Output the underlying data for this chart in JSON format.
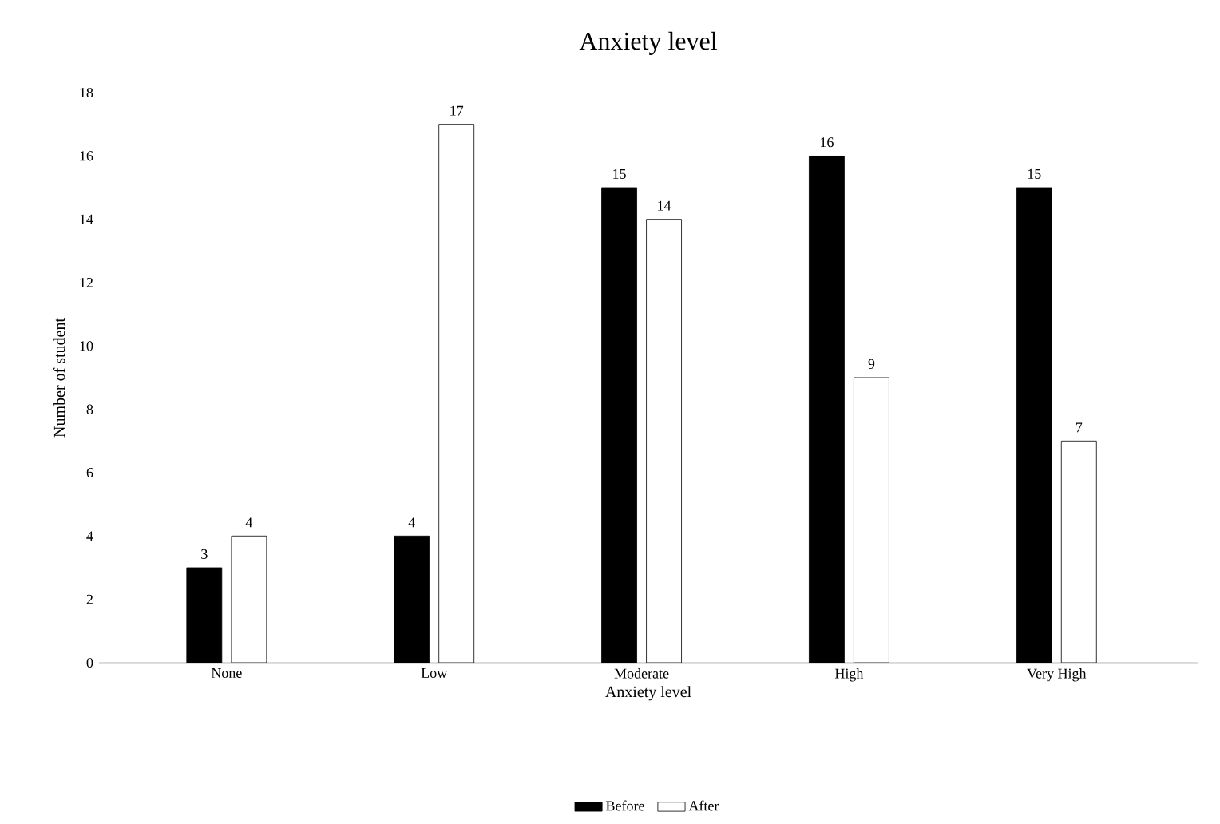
{
  "chart_data": {
    "type": "bar",
    "title": "Anxiety  level",
    "xlabel": "Anxiety level",
    "ylabel": "Number of student",
    "categories": [
      "None",
      "Low",
      "Moderate",
      "High",
      "Very High"
    ],
    "series": [
      {
        "name": "Before",
        "color": "#000000",
        "values": [
          3,
          4,
          15,
          16,
          15
        ]
      },
      {
        "name": "After",
        "color": "#ffffff",
        "values": [
          4,
          17,
          14,
          9,
          7
        ]
      }
    ],
    "ylim": [
      0,
      18
    ],
    "yticks": [
      0,
      2,
      4,
      6,
      8,
      10,
      12,
      14,
      16,
      18
    ],
    "data_labels": true,
    "legend": "bottom",
    "grid": false
  }
}
